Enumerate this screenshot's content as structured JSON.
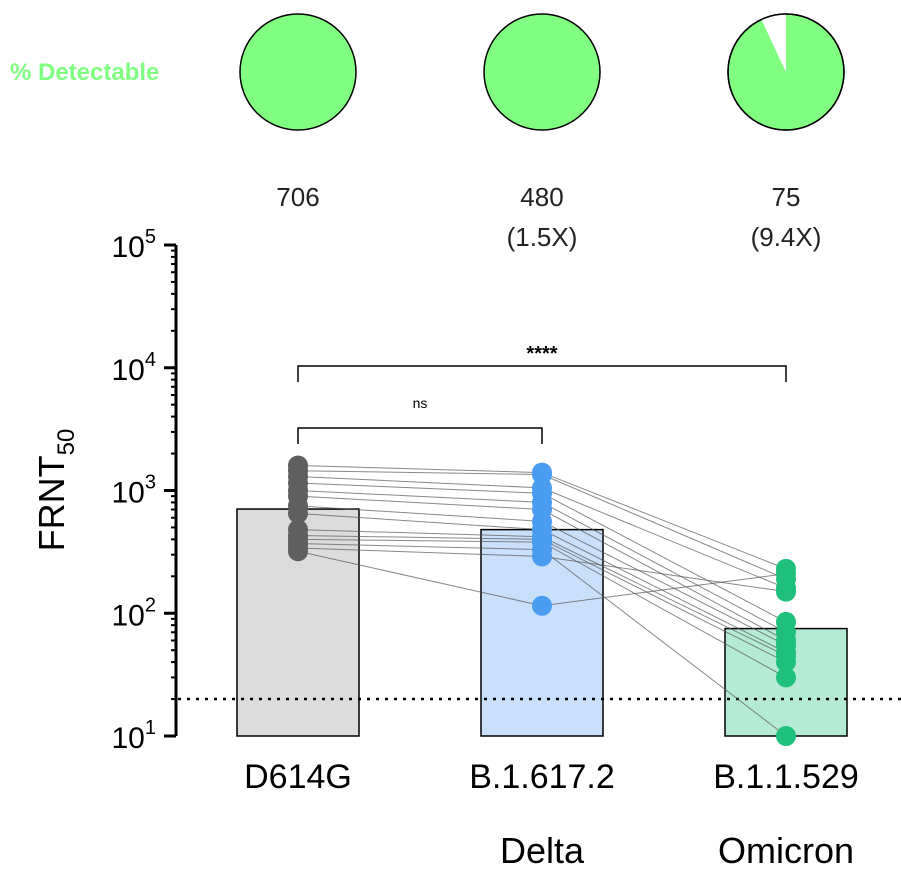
{
  "detectable": {
    "label": "% Detectable",
    "color": "#80ff80",
    "undetectable_color": "#ffffff",
    "fractions": [
      1.0,
      1.0,
      0.93
    ]
  },
  "chart_data": {
    "type": "bar",
    "yscale": "log",
    "ylim": [
      10,
      100000
    ],
    "ylabel": "FRNT",
    "ylabel_sub": "50",
    "yticks": [
      {
        "base": "10",
        "exp": "1"
      },
      {
        "base": "10",
        "exp": "2"
      },
      {
        "base": "10",
        "exp": "3"
      },
      {
        "base": "10",
        "exp": "4"
      },
      {
        "base": "10",
        "exp": "5"
      }
    ],
    "limit_of_detection": 20,
    "categories": [
      "D614G",
      "B.1.617.2",
      "B.1.1.529"
    ],
    "variant_names": [
      "",
      "Delta",
      "Omicron"
    ],
    "geomean_labels": [
      {
        "value": "706",
        "fold": ""
      },
      {
        "value": "480",
        "fold": "(1.5X)"
      },
      {
        "value": "75",
        "fold": "(9.4X)"
      }
    ],
    "bars": [
      {
        "value": 706,
        "fill": "#dcdcdc",
        "point_color": "#5f5f5f"
      },
      {
        "value": 480,
        "fill": "#c9e0fb",
        "point_color": "#4a9cf0"
      },
      {
        "value": 75,
        "fill": "#b5ebd4",
        "point_color": "#1ec07c"
      }
    ],
    "paired_points": [
      [
        1600,
        1400,
        230
      ],
      [
        1450,
        1350,
        190
      ],
      [
        1300,
        1050,
        160
      ],
      [
        1150,
        950,
        85
      ],
      [
        1000,
        800,
        70
      ],
      [
        900,
        700,
        60
      ],
      [
        750,
        560,
        55
      ],
      [
        650,
        480,
        48
      ],
      [
        480,
        420,
        45
      ],
      [
        430,
        400,
        40
      ],
      [
        400,
        380,
        30
      ],
      [
        370,
        330,
        10
      ],
      [
        340,
        290,
        150
      ],
      [
        320,
        115,
        210
      ]
    ],
    "significance": [
      {
        "from": 0,
        "to": 1,
        "text": "ns",
        "level": 1
      },
      {
        "from": 0,
        "to": 2,
        "text": "****",
        "level": 2
      }
    ]
  }
}
